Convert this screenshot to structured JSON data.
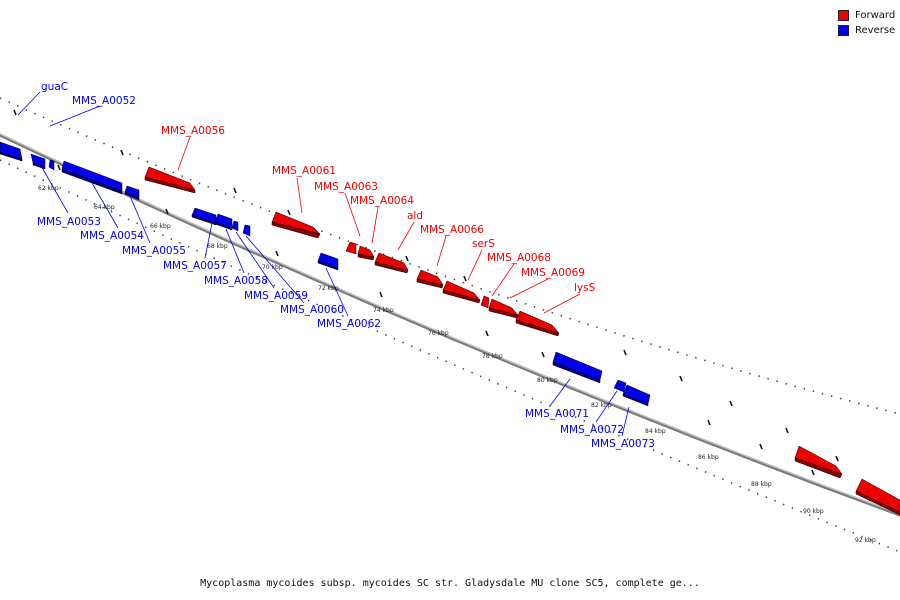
{
  "legend": {
    "forward_label": "Forward",
    "reverse_label": "Reverse",
    "forward_color": "#ee0000",
    "reverse_color": "#0000ee"
  },
  "caption": "Mycoplasma mycoides subsp. mycoides SC str. Gladysdale MU clone SC5, complete ge...",
  "scale_labels": [
    "62 kbp",
    "64 kbp",
    "66 kbp",
    "68 kbp",
    "70 kbp",
    "72 kbp",
    "74 kbp",
    "76 kbp",
    "78 kbp",
    "80 kbp",
    "82 kbp",
    "84 kbp",
    "86 kbp",
    "88 kbp",
    "90 kbp",
    "92 kbp"
  ],
  "genes": [
    {
      "name": "guaC",
      "strand": "reverse",
      "position_kbp": 59.3
    },
    {
      "name": "MMS_A0052",
      "strand": "reverse",
      "position_kbp": 60.1
    },
    {
      "name": "MMS_A0053",
      "strand": "reverse",
      "position_kbp": 61.9
    },
    {
      "name": "MMS_A0054",
      "strand": "reverse",
      "position_kbp": 62.6
    },
    {
      "name": "MMS_A0055",
      "strand": "reverse",
      "position_kbp": 64.4
    },
    {
      "name": "MMS_A0056",
      "strand": "forward",
      "position_kbp": 65.3
    },
    {
      "name": "MMS_A0057",
      "strand": "reverse",
      "position_kbp": 66.9
    },
    {
      "name": "MMS_A0058",
      "strand": "reverse",
      "position_kbp": 67.6
    },
    {
      "name": "MMS_A0059",
      "strand": "reverse",
      "position_kbp": 68.1
    },
    {
      "name": "MMS_A0060",
      "strand": "reverse",
      "position_kbp": 68.5
    },
    {
      "name": "MMS_A0061",
      "strand": "forward",
      "position_kbp": 69.4
    },
    {
      "name": "MMS_A0062",
      "strand": "reverse",
      "position_kbp": 70.8
    },
    {
      "name": "MMS_A0063",
      "strand": "forward",
      "position_kbp": 71.7
    },
    {
      "name": "MMS_A0064",
      "strand": "forward",
      "position_kbp": 72.2
    },
    {
      "name": "ald",
      "strand": "forward",
      "position_kbp": 73.1
    },
    {
      "name": "MMS_A0066",
      "strand": "forward",
      "position_kbp": 74.4
    },
    {
      "name": "serS",
      "strand": "forward",
      "position_kbp": 75.6
    },
    {
      "name": "MMS_A0068",
      "strand": "forward",
      "position_kbp": 76.4
    },
    {
      "name": "MMS_A0069",
      "strand": "forward",
      "position_kbp": 77.1
    },
    {
      "name": "lysS",
      "strand": "forward",
      "position_kbp": 78.2
    },
    {
      "name": "MMS_A0071",
      "strand": "reverse",
      "position_kbp": 80.2
    },
    {
      "name": "MMS_A0072",
      "strand": "reverse",
      "position_kbp": 81.8
    },
    {
      "name": "MMS_A0073",
      "strand": "reverse",
      "position_kbp": 82.6
    }
  ]
}
